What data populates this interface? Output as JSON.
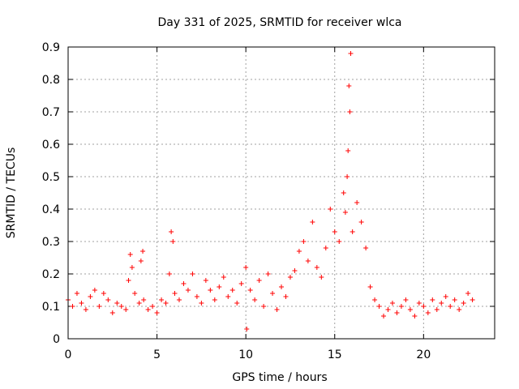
{
  "chart_data": {
    "type": "scatter",
    "title": "Day 331 of 2025, SRMTID for receiver wlca",
    "xlabel": "GPS time / hours",
    "ylabel": "SRMTID / TECUs",
    "xlim": [
      0,
      24
    ],
    "ylim": [
      0,
      0.9
    ],
    "xticks": [
      0,
      5,
      10,
      15,
      20
    ],
    "xtick_labels": [
      "0",
      "5",
      "10",
      "15",
      "20"
    ],
    "yticks": [
      0,
      0.1,
      0.2,
      0.3,
      0.4,
      0.5,
      0.6,
      0.7,
      0.8,
      0.9
    ],
    "ytick_labels": [
      "0",
      "0.1",
      "0.2",
      "0.3",
      "0.4",
      "0.5",
      "0.6",
      "0.7",
      "0.8",
      "0.9"
    ],
    "grid": true,
    "marker": "+",
    "marker_color": "#ff0000",
    "series": [
      {
        "name": "SRMTID",
        "x": [
          0.0,
          0.25,
          0.5,
          0.75,
          1.0,
          1.25,
          1.5,
          1.75,
          2.0,
          2.25,
          2.5,
          2.75,
          3.0,
          3.25,
          3.4,
          3.5,
          3.6,
          3.75,
          4.0,
          4.1,
          4.2,
          4.25,
          4.5,
          4.75,
          5.0,
          5.25,
          5.5,
          5.7,
          5.8,
          5.9,
          6.0,
          6.25,
          6.5,
          6.75,
          7.0,
          7.25,
          7.5,
          7.75,
          8.0,
          8.25,
          8.5,
          8.75,
          9.0,
          9.25,
          9.5,
          9.75,
          10.0,
          10.05,
          10.25,
          10.5,
          10.75,
          11.0,
          11.25,
          11.5,
          11.75,
          12.0,
          12.25,
          12.5,
          12.75,
          13.0,
          13.25,
          13.5,
          13.75,
          14.0,
          14.25,
          14.5,
          14.75,
          15.0,
          15.25,
          15.5,
          15.6,
          15.7,
          15.75,
          15.8,
          15.85,
          15.9,
          16.0,
          16.25,
          16.5,
          16.75,
          17.0,
          17.25,
          17.5,
          17.75,
          18.0,
          18.25,
          18.5,
          18.75,
          19.0,
          19.25,
          19.5,
          19.75,
          20.0,
          20.25,
          20.5,
          20.75,
          21.0,
          21.25,
          21.5,
          21.75,
          22.0,
          22.25,
          22.5,
          22.75
        ],
        "y": [
          0.12,
          0.1,
          0.14,
          0.11,
          0.09,
          0.13,
          0.15,
          0.1,
          0.14,
          0.12,
          0.08,
          0.11,
          0.1,
          0.09,
          0.18,
          0.26,
          0.22,
          0.14,
          0.11,
          0.24,
          0.27,
          0.12,
          0.09,
          0.1,
          0.08,
          0.12,
          0.11,
          0.2,
          0.33,
          0.3,
          0.14,
          0.12,
          0.17,
          0.15,
          0.2,
          0.13,
          0.11,
          0.18,
          0.15,
          0.12,
          0.16,
          0.19,
          0.13,
          0.15,
          0.11,
          0.17,
          0.22,
          0.03,
          0.15,
          0.12,
          0.18,
          0.1,
          0.2,
          0.14,
          0.09,
          0.16,
          0.13,
          0.19,
          0.21,
          0.27,
          0.3,
          0.24,
          0.36,
          0.22,
          0.19,
          0.28,
          0.4,
          0.33,
          0.3,
          0.45,
          0.39,
          0.5,
          0.58,
          0.78,
          0.7,
          0.88,
          0.33,
          0.42,
          0.36,
          0.28,
          0.16,
          0.12,
          0.1,
          0.07,
          0.09,
          0.11,
          0.08,
          0.1,
          0.12,
          0.09,
          0.07,
          0.11,
          0.1,
          0.08,
          0.12,
          0.09,
          0.11,
          0.13,
          0.1,
          0.12,
          0.09,
          0.11,
          0.14,
          0.12
        ]
      }
    ]
  }
}
